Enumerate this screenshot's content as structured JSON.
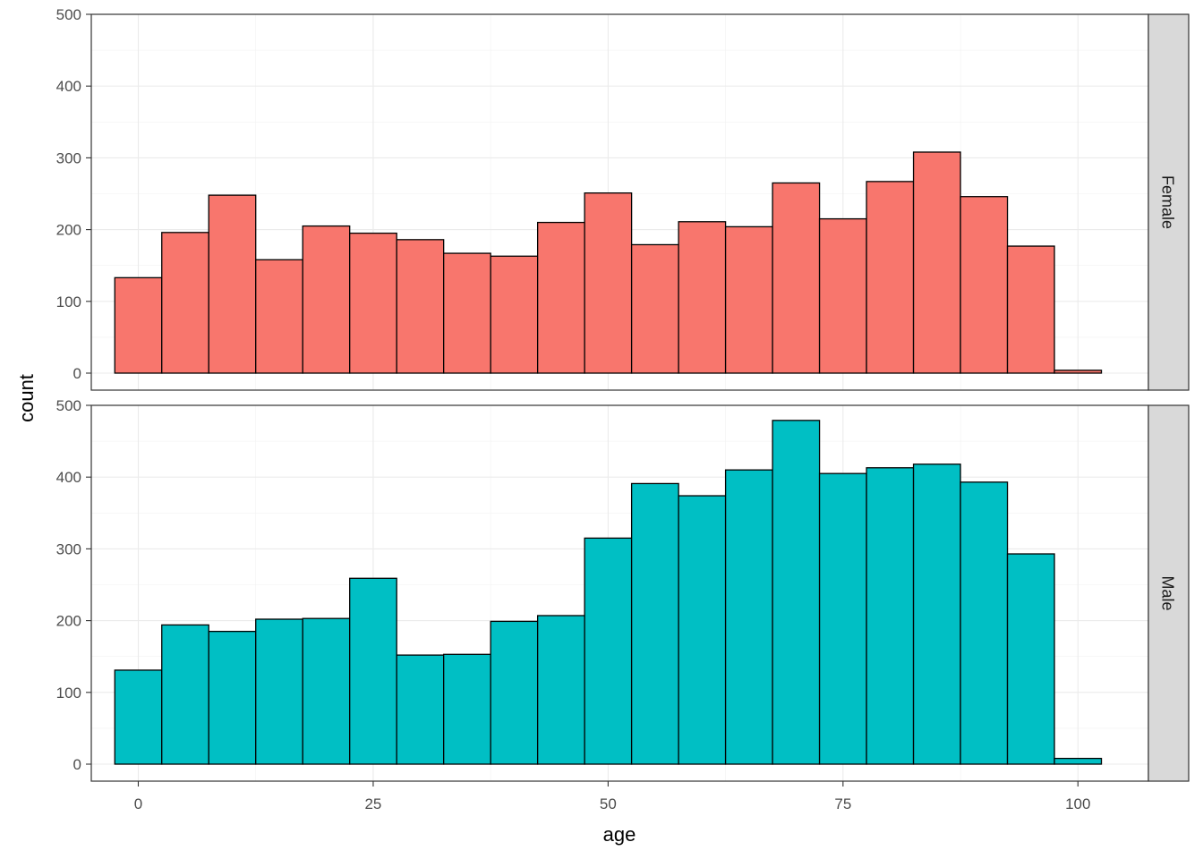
{
  "chart_data": {
    "type": "bar",
    "subtype": "faceted-histogram",
    "xlabel": "age",
    "ylabel": "count",
    "xlim": [
      -5,
      107.5
    ],
    "ylim": [
      0,
      500
    ],
    "xticks": [
      0,
      25,
      50,
      75,
      100
    ],
    "yticks": [
      0,
      100,
      200,
      300,
      400,
      500
    ],
    "grid": true,
    "bin_width": 5,
    "bin_centers": [
      0,
      5,
      10,
      15,
      20,
      25,
      30,
      35,
      40,
      45,
      50,
      55,
      60,
      65,
      70,
      75,
      80,
      85,
      90,
      95,
      100
    ],
    "series": [
      {
        "name": "Female",
        "color": "#F8766D",
        "values": [
          133,
          196,
          248,
          158,
          205,
          195,
          186,
          167,
          163,
          210,
          251,
          179,
          211,
          204,
          265,
          215,
          267,
          308,
          246,
          177,
          4
        ]
      },
      {
        "name": "Male",
        "color": "#00BFC4",
        "values": [
          131,
          194,
          185,
          202,
          203,
          259,
          152,
          153,
          199,
          207,
          315,
          391,
          374,
          410,
          479,
          405,
          413,
          418,
          393,
          293,
          8
        ]
      }
    ]
  }
}
